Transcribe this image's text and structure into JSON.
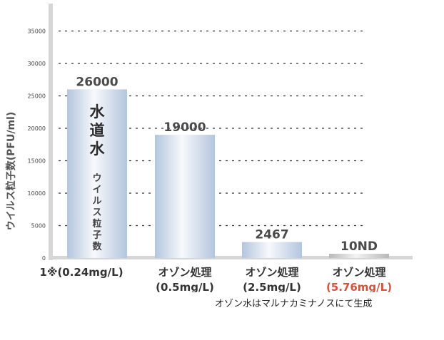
{
  "chart_data": {
    "type": "bar",
    "ylabel": "ウイルス粒子数(PFU/ml)",
    "ylim": [
      0,
      35000
    ],
    "yticks": [
      0,
      5000,
      10000,
      15000,
      20000,
      25000,
      30000,
      35000
    ],
    "grid": "dashed horizontal",
    "categories": [
      {
        "line1": "1※(0.24mg/L)",
        "line2": ""
      },
      {
        "line1": "オゾン処理",
        "line2": "(0.5mg/L)"
      },
      {
        "line1": "オゾン処理",
        "line2": "(2.5mg/L)"
      },
      {
        "line1": "オゾン処理",
        "line2": "(5.76mg/L)",
        "highlight": true
      }
    ],
    "values": [
      26000,
      19000,
      2467,
      10
    ],
    "value_labels": [
      "26000",
      "19000",
      "2467",
      "10ND"
    ],
    "bar1_inner_label": {
      "big": "水道水",
      "small": "ウイルス粒子数"
    }
  },
  "footnote": "オゾン水はマルナカミナノスにて生成",
  "colors": {
    "bar_edge": "#b8c8dc",
    "bar_center": "#ffffff",
    "highlight": "#d2533c",
    "axis": "#d4d4d4"
  }
}
